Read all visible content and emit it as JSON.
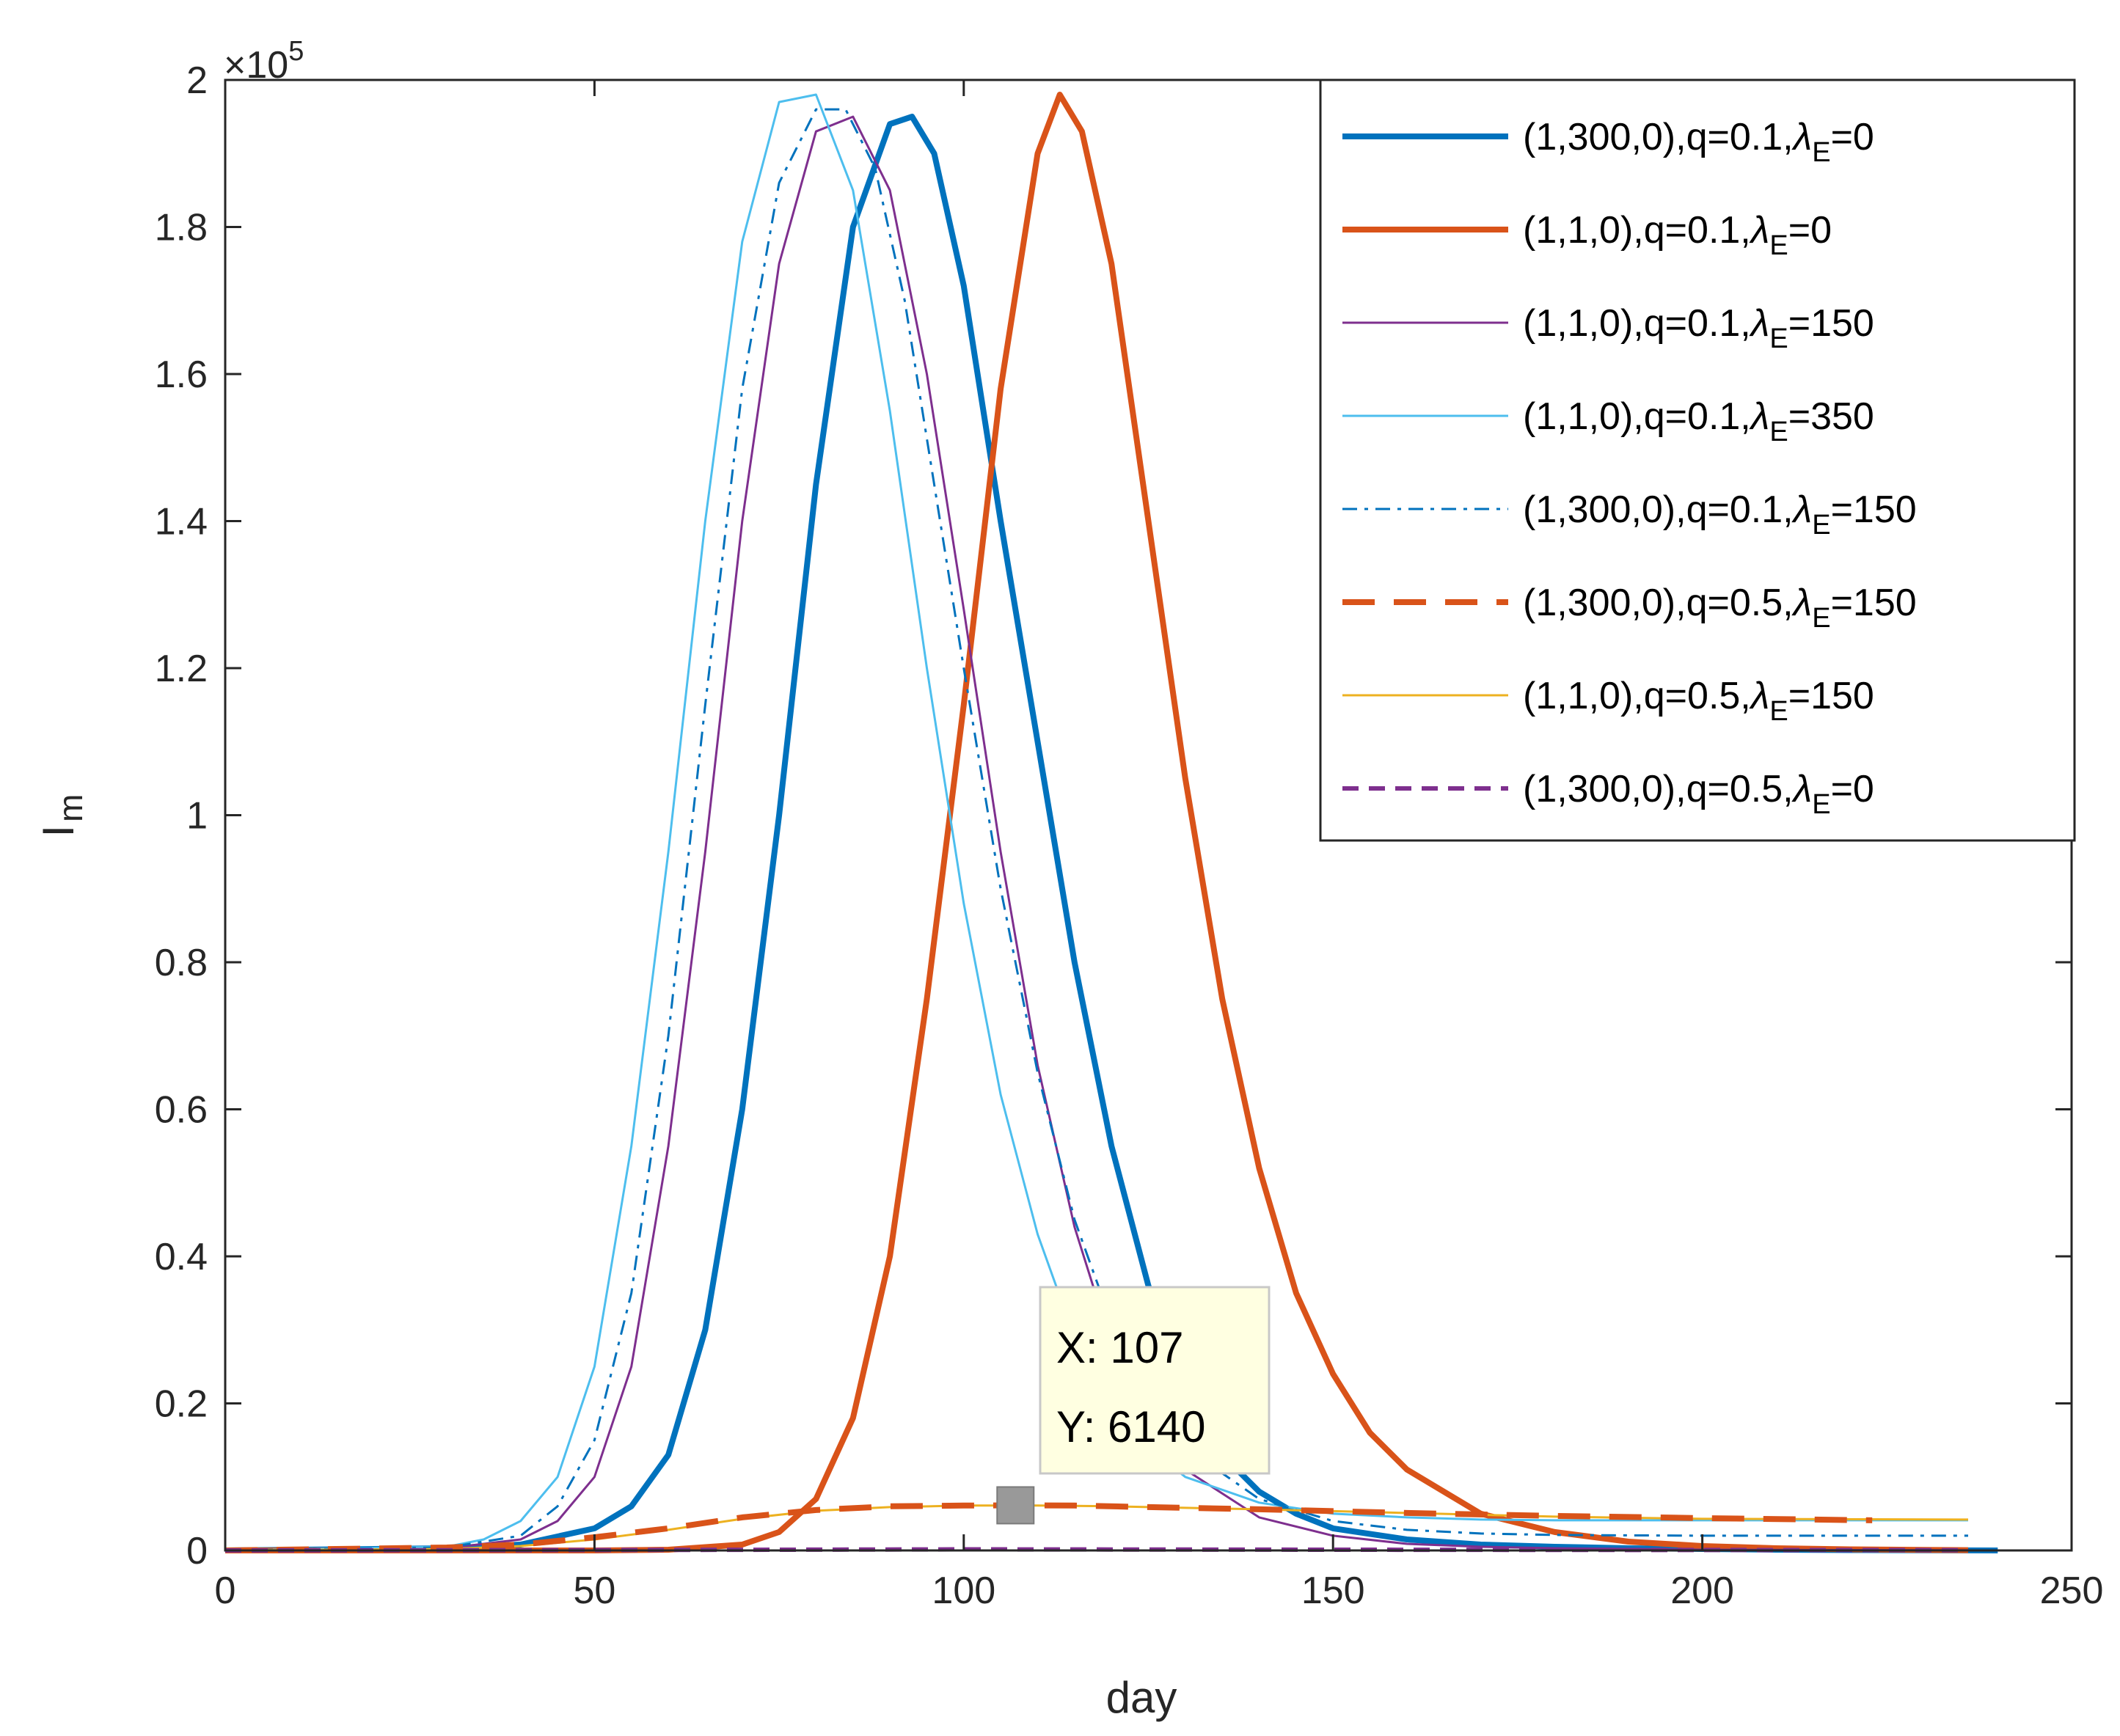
{
  "chart_data": {
    "type": "line",
    "xlabel": "day",
    "ylabel": "I",
    "ylabel_sub": "m",
    "xlim": [
      0,
      250
    ],
    "ylim": [
      0,
      200000
    ],
    "xticks": [
      0,
      50,
      100,
      150,
      200,
      250
    ],
    "xtick_labels": [
      "0",
      "50",
      "100",
      "150",
      "200",
      "250"
    ],
    "yticks": [
      0,
      20000,
      40000,
      60000,
      80000,
      100000,
      120000,
      140000,
      160000,
      180000,
      200000
    ],
    "ytick_labels": [
      "0",
      "0.2",
      "0.4",
      "0.6",
      "0.8",
      "1",
      "1.2",
      "1.4",
      "1.6",
      "1.8",
      "2"
    ],
    "y_exponent": {
      "base": "×10",
      "power": "5"
    },
    "grid": false,
    "legend_position": "top-right",
    "series": [
      {
        "name": "(1,300,0),q=0.1,λE=0",
        "label_main": "(1,300,0),q=0.1,",
        "lambda": "λ",
        "sub": "E",
        "label_tail": "=0",
        "color": "#0072BD",
        "style": "solid",
        "weight": "thick",
        "x": [
          0,
          30,
          40,
          50,
          55,
          60,
          65,
          70,
          75,
          80,
          85,
          90,
          93,
          96,
          100,
          105,
          110,
          115,
          120,
          125,
          130,
          135,
          140,
          145,
          150,
          160,
          170,
          180,
          190,
          200,
          210,
          220,
          230,
          240
        ],
        "values": [
          0,
          300,
          800,
          3000,
          6000,
          13000,
          30000,
          60000,
          100000,
          145000,
          180000,
          194000,
          195000,
          190000,
          172000,
          140000,
          110000,
          80000,
          55000,
          36000,
          22000,
          13000,
          8000,
          5000,
          3000,
          1500,
          800,
          500,
          300,
          200,
          100,
          50,
          20,
          0
        ]
      },
      {
        "name": "(1,1,0),q=0.1,λE=0",
        "label_main": "(1,1,0),q=0.1,",
        "lambda": "λ",
        "sub": "E",
        "label_tail": "=0",
        "color": "#D95319",
        "style": "solid",
        "weight": "thick",
        "x": [
          0,
          50,
          60,
          70,
          75,
          80,
          85,
          90,
          95,
          100,
          105,
          110,
          113,
          116,
          120,
          125,
          130,
          135,
          140,
          145,
          150,
          155,
          160,
          170,
          180,
          190,
          200,
          210,
          220,
          230,
          236
        ],
        "values": [
          0,
          0,
          100,
          800,
          2500,
          7000,
          18000,
          40000,
          75000,
          115000,
          158000,
          190000,
          198000,
          193000,
          175000,
          140000,
          105000,
          75000,
          52000,
          35000,
          24000,
          16000,
          11000,
          5000,
          2500,
          1200,
          600,
          300,
          150,
          80,
          40
        ]
      },
      {
        "name": "(1,1,0),q=0.1,λE=150",
        "label_main": "(1,1,0),q=0.1,",
        "lambda": "λ",
        "sub": "E",
        "label_tail": "=150",
        "color": "#7E2F8E",
        "style": "solid",
        "weight": "thin",
        "x": [
          0,
          30,
          40,
          45,
          50,
          55,
          60,
          65,
          70,
          75,
          80,
          85,
          90,
          95,
          100,
          105,
          110,
          115,
          120,
          125,
          130,
          140,
          150,
          160,
          170,
          180,
          200,
          220,
          236
        ],
        "values": [
          0,
          300,
          1500,
          4000,
          10000,
          25000,
          55000,
          95000,
          140000,
          175000,
          193000,
          195000,
          185000,
          160000,
          128000,
          95000,
          66000,
          44000,
          28000,
          18000,
          11000,
          4500,
          2000,
          900,
          500,
          300,
          100,
          50,
          20
        ]
      },
      {
        "name": "(1,1,0),q=0.1,λE=350",
        "label_main": "(1,1,0),q=0.1,",
        "lambda": "λ",
        "sub": "E",
        "label_tail": "=350",
        "color": "#4DBEEE",
        "style": "solid",
        "weight": "thin",
        "x": [
          0,
          30,
          35,
          40,
          45,
          50,
          55,
          60,
          65,
          70,
          75,
          80,
          85,
          90,
          95,
          100,
          105,
          110,
          115,
          120,
          125,
          130,
          140,
          150,
          160,
          170,
          180,
          200,
          220,
          236
        ],
        "values": [
          0,
          500,
          1500,
          4000,
          10000,
          25000,
          55000,
          95000,
          140000,
          178000,
          197000,
          198000,
          185000,
          155000,
          120000,
          88000,
          62000,
          43000,
          29000,
          20000,
          14000,
          10000,
          6500,
          5000,
          4500,
          4200,
          4100,
          4100,
          4100,
          4100
        ]
      },
      {
        "name": "(1,300,0),q=0.1,λE=150",
        "label_main": "(1,300,0),q=0.1,",
        "lambda": "λ",
        "sub": "E",
        "label_tail": "=150",
        "color": "#0072BD",
        "style": "dashdot",
        "weight": "thin",
        "x": [
          0,
          30,
          40,
          45,
          50,
          55,
          60,
          65,
          70,
          75,
          80,
          84,
          88,
          92,
          96,
          100,
          105,
          110,
          115,
          120,
          125,
          130,
          140,
          150,
          160,
          170,
          180,
          200,
          220,
          236
        ],
        "values": [
          0,
          400,
          2000,
          6000,
          15000,
          35000,
          70000,
          115000,
          158000,
          186000,
          196000,
          196000,
          188000,
          170000,
          145000,
          120000,
          90000,
          65000,
          45000,
          31000,
          21000,
          14000,
          7000,
          4000,
          2800,
          2300,
          2100,
          2000,
          2000,
          2000
        ]
      },
      {
        "name": "(1,300,0),q=0.5,λE=150",
        "label_main": "(1,300,0),q=0.5,",
        "lambda": "λ",
        "sub": "E",
        "label_tail": "=150",
        "color": "#D95319",
        "style": "dashed",
        "weight": "thick",
        "x": [
          0,
          30,
          40,
          50,
          60,
          70,
          80,
          90,
          100,
          107,
          115,
          125,
          140,
          160,
          180,
          200,
          223
        ],
        "values": [
          0,
          400,
          800,
          1800,
          3000,
          4500,
          5500,
          6000,
          6100,
          6140,
          6100,
          5900,
          5600,
          5100,
          4700,
          4400,
          4100
        ]
      },
      {
        "name": "(1,1,0),q=0.5,λE=150",
        "label_main": "(1,1,0),q=0.5,",
        "lambda": "λ",
        "sub": "E",
        "label_tail": "=150",
        "color": "#EDB120",
        "style": "solid",
        "weight": "thin",
        "x": [
          0,
          30,
          40,
          50,
          60,
          70,
          80,
          90,
          100,
          110,
          120,
          140,
          160,
          180,
          200,
          236
        ],
        "values": [
          0,
          200,
          600,
          1500,
          2800,
          4300,
          5400,
          5900,
          6100,
          6100,
          6000,
          5600,
          5100,
          4600,
          4300,
          4200
        ]
      },
      {
        "name": "(1,300,0),q=0.5,λE=0",
        "label_main": "(1,300,0),q=0.5,",
        "lambda": "λ",
        "sub": "E",
        "label_tail": "=0",
        "color": "#7E2F8E",
        "style": "dashed",
        "weight": "medium",
        "x": [
          0,
          50,
          100,
          150,
          200,
          236
        ],
        "values": [
          0,
          50,
          150,
          100,
          60,
          40
        ]
      }
    ],
    "datatip": {
      "x": 107,
      "y": 6140,
      "x_label": "X: 107",
      "y_label": "Y: 6140"
    }
  }
}
